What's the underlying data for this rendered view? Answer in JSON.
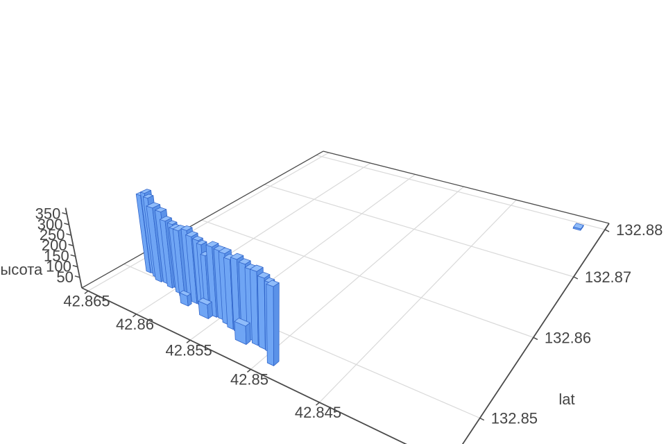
{
  "chart_data": {
    "type": "bar3d",
    "title": "",
    "zlabel": "высота",
    "ylabel": "lat",
    "xlabel": "",
    "x_tick_values": [
      42.845,
      42.85,
      42.855,
      42.86,
      42.865
    ],
    "x_tick_labels": [
      "42.845",
      "42.85",
      "42.855",
      "42.86",
      "42.865"
    ],
    "y_tick_values": [
      132.85,
      132.86,
      132.87,
      132.88
    ],
    "y_tick_labels": [
      "132.85",
      "132.86",
      "132.87",
      "132.88"
    ],
    "z_tick_values": [
      50,
      100,
      150,
      200,
      250,
      300,
      350
    ],
    "z_tick_labels": [
      "50",
      "100",
      "150",
      "200",
      "250",
      "300",
      "350"
    ],
    "x_range": [
      42.8371,
      42.86569
    ],
    "y_range": [
      132.8454,
      132.8815
    ],
    "z_range": [
      0,
      380
    ],
    "grid": true,
    "legend": false,
    "colors": {
      "background": "#ffffff",
      "bar_face": "#6FA5F4",
      "bar_side": "#5B92E8",
      "bar_top": "#8FBCFA",
      "bar_edge": "#2E62C8",
      "axis_line": "#4a4a4a",
      "grid_line": "#d9d9d9",
      "text": "#444444"
    },
    "bars_columns": [
      "lat",
      "lon",
      "dlat",
      "dlon",
      "height"
    ],
    "bars": [
      [
        42.8633,
        132.8506,
        0.00045,
        0.0006,
        375
      ],
      [
        42.8629,
        132.8507,
        0.0004,
        0.0007,
        390
      ],
      [
        42.8624,
        132.8504,
        0.00045,
        0.0006,
        380
      ],
      [
        42.8618,
        132.8502,
        0.0006,
        0.0008,
        350
      ],
      [
        42.8611,
        132.8502,
        0.00055,
        0.0006,
        340
      ],
      [
        42.8605,
        132.85,
        0.0005,
        0.0007,
        312
      ],
      [
        42.86,
        132.8501,
        0.00045,
        0.0005,
        300
      ],
      [
        42.8595,
        132.8498,
        0.00045,
        0.0007,
        296
      ],
      [
        42.8589,
        132.8496,
        0.0005,
        0.0008,
        305
      ],
      [
        42.8583,
        132.8497,
        0.0005,
        0.0006,
        312
      ],
      [
        42.8577,
        132.8495,
        0.0005,
        0.0007,
        300
      ],
      [
        42.8571,
        132.8494,
        0.0005,
        0.0005,
        293
      ],
      [
        42.8566,
        132.8492,
        0.0004,
        0.0006,
        288
      ],
      [
        42.8561,
        132.8489,
        0.0004,
        0.0005,
        255
      ],
      [
        42.8555,
        132.849,
        0.0005,
        0.0007,
        305
      ],
      [
        42.8549,
        132.849,
        0.0005,
        0.0006,
        298
      ],
      [
        42.8543,
        132.8488,
        0.0005,
        0.0007,
        303
      ],
      [
        42.8537,
        132.8485,
        0.0005,
        0.0006,
        295
      ],
      [
        42.8531,
        132.8485,
        0.0005,
        0.0007,
        308
      ],
      [
        42.8525,
        132.8485,
        0.0005,
        0.0006,
        298
      ],
      [
        42.8519,
        132.8483,
        0.00045,
        0.0006,
        292
      ],
      [
        42.8513,
        132.8481,
        0.0005,
        0.0007,
        302
      ],
      [
        42.8507,
        132.848,
        0.0005,
        0.0006,
        288
      ],
      [
        42.8502,
        132.8479,
        0.0004,
        0.0005,
        280
      ],
      [
        42.8493,
        132.8469,
        0.0005,
        0.0006,
        310
      ],
      [
        42.8581,
        132.8487,
        0.0007,
        0.0004,
        45
      ],
      [
        42.856,
        132.8484,
        0.0008,
        0.0005,
        60
      ],
      [
        42.8522,
        132.8476,
        0.0009,
        0.0005,
        75
      ],
      [
        42.839,
        132.879,
        0.0006,
        0.0009,
        8
      ]
    ]
  }
}
